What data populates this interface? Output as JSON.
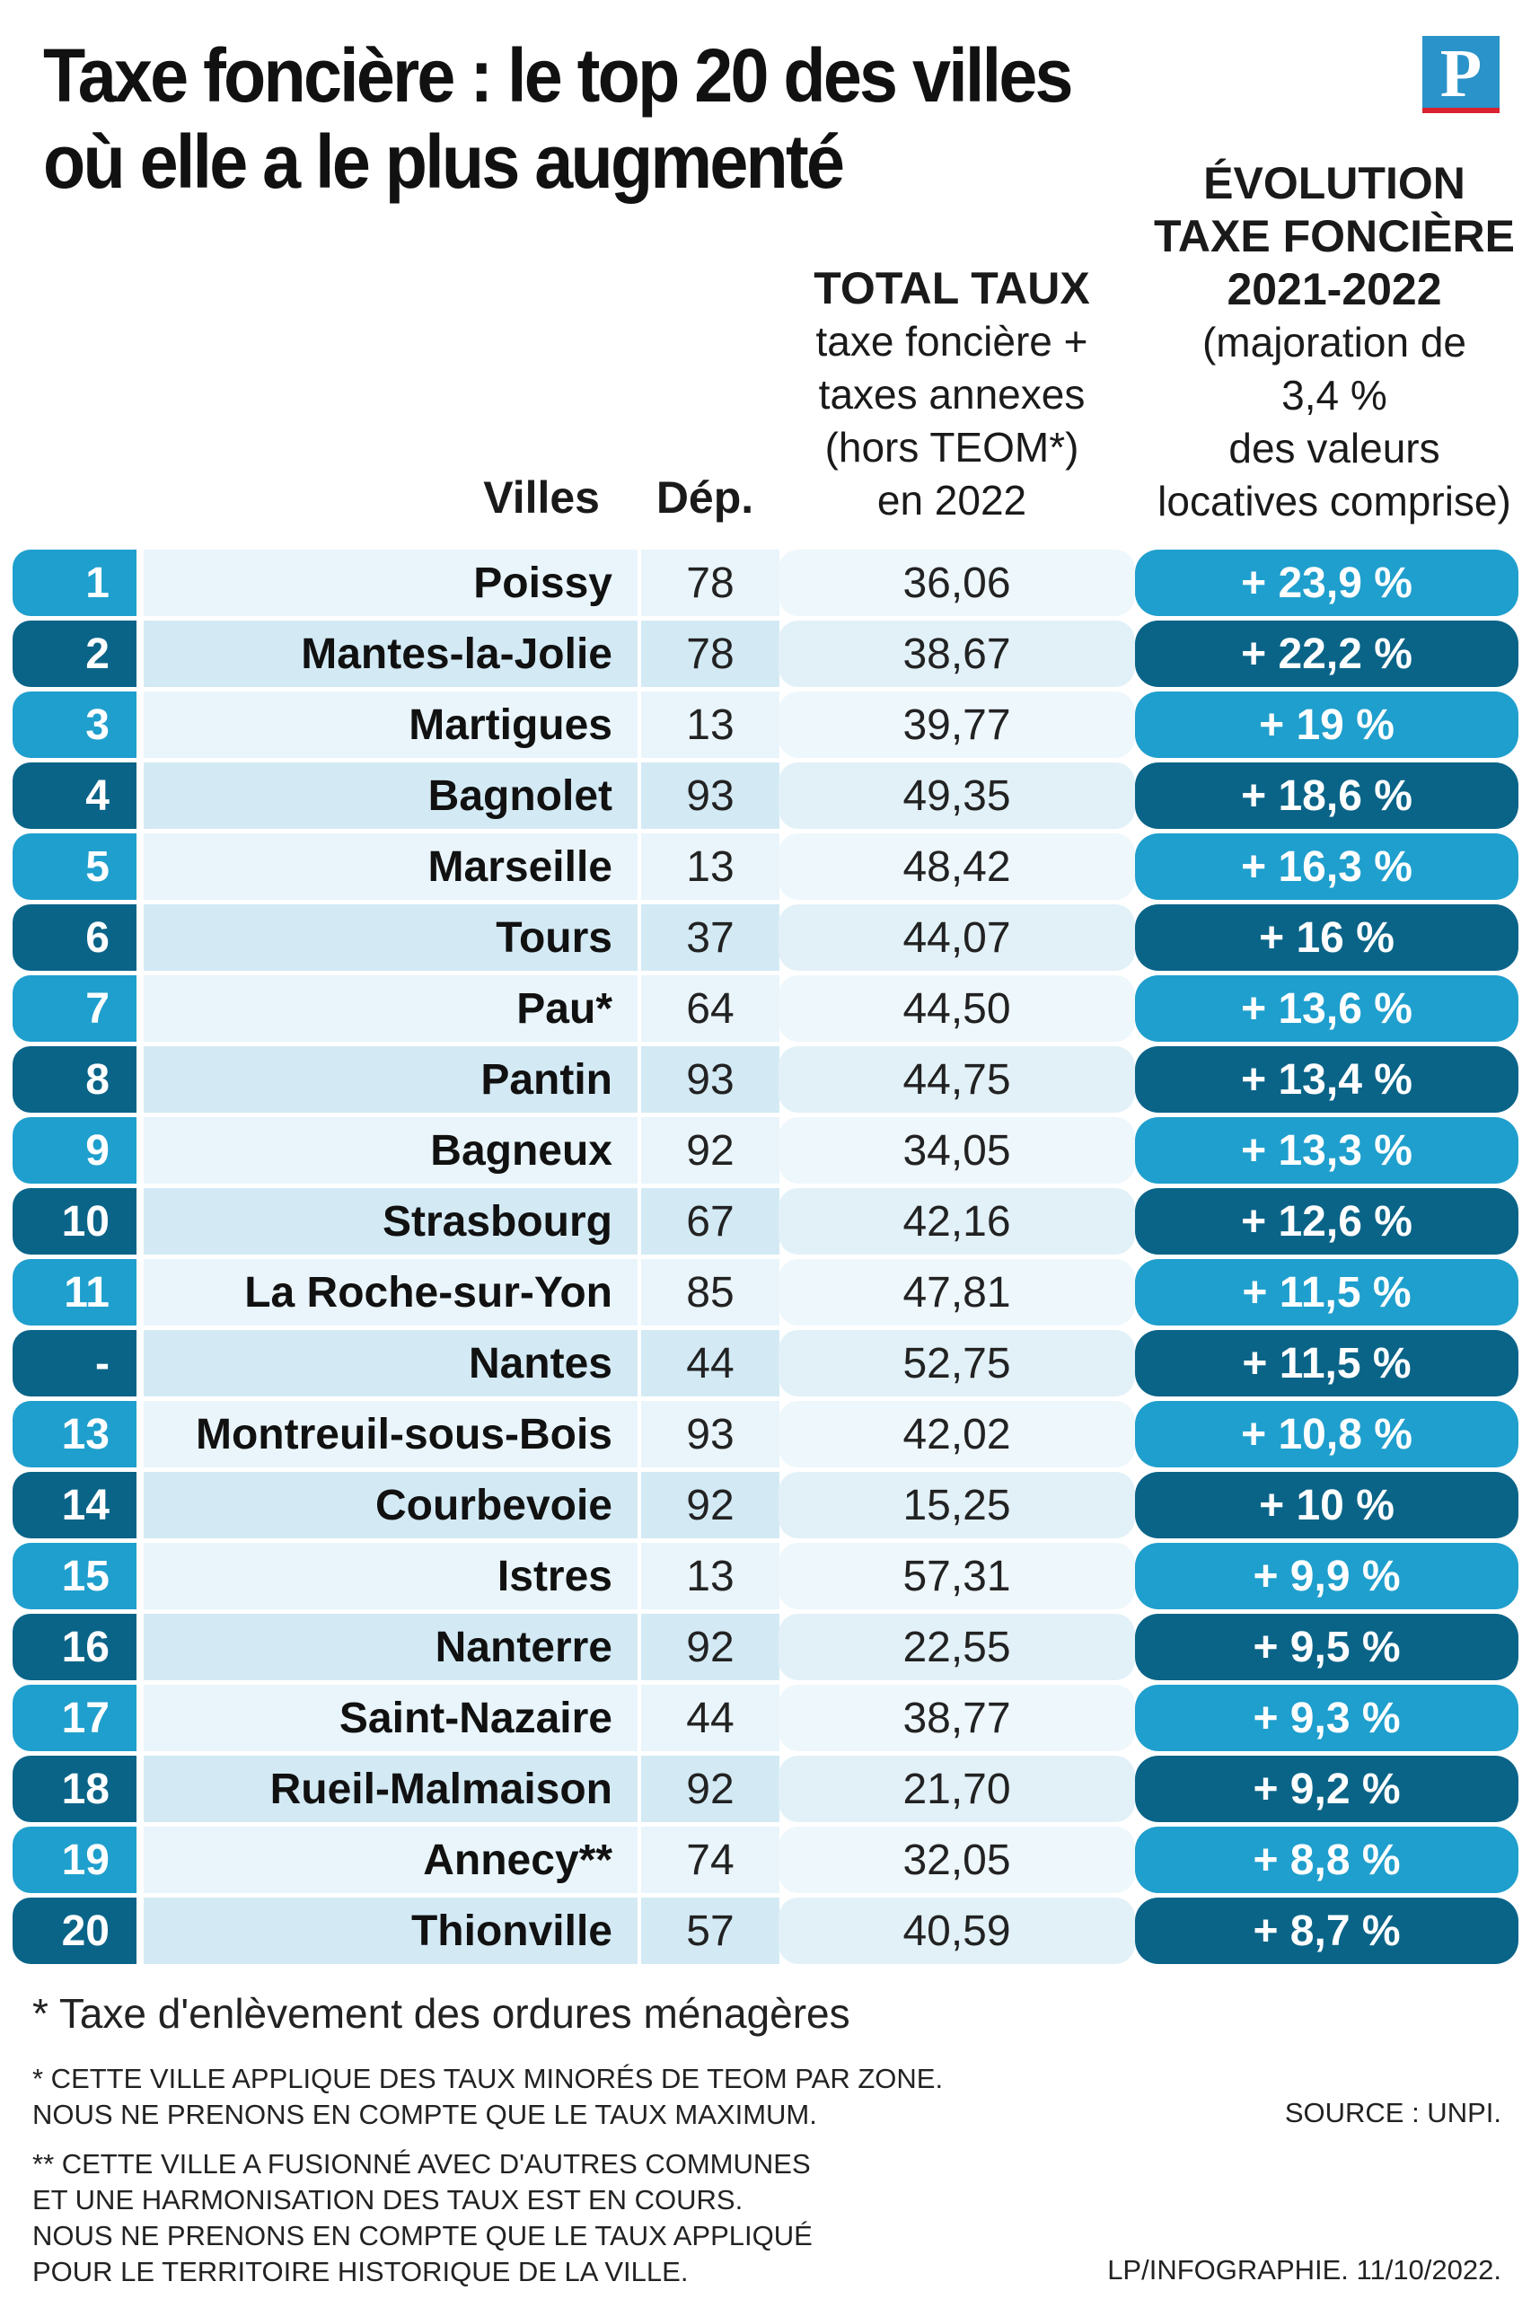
{
  "title": {
    "line1": "Taxe foncière : le top 20 des villes",
    "line2": "où elle a le plus augmenté"
  },
  "logo": {
    "letter": "P"
  },
  "headers": {
    "villes": "Villes",
    "dep": "Dép.",
    "total": {
      "title": "TOTAL TAUX",
      "lines": [
        "taxe foncière +",
        "taxes annexes",
        "(hors TEOM*)",
        "en 2022"
      ]
    },
    "evolution": {
      "title": [
        "ÉVOLUTION",
        "TAXE FONCIÈRE",
        "2021-2022"
      ],
      "lines": [
        "(majoration de",
        "3,4 %",
        "des valeurs",
        "locatives comprise)"
      ]
    }
  },
  "rows": [
    {
      "rank": "1",
      "city": "Poissy",
      "dep": "78",
      "total": "36,06",
      "evolution": "+ 23,9 %"
    },
    {
      "rank": "2",
      "city": "Mantes-la-Jolie",
      "dep": "78",
      "total": "38,67",
      "evolution": "+ 22,2 %"
    },
    {
      "rank": "3",
      "city": "Martigues",
      "dep": "13",
      "total": "39,77",
      "evolution": "+ 19 %"
    },
    {
      "rank": "4",
      "city": "Bagnolet",
      "dep": "93",
      "total": "49,35",
      "evolution": "+ 18,6 %"
    },
    {
      "rank": "5",
      "city": "Marseille",
      "dep": "13",
      "total": "48,42",
      "evolution": "+ 16,3 %"
    },
    {
      "rank": "6",
      "city": "Tours",
      "dep": "37",
      "total": "44,07",
      "evolution": "+ 16 %"
    },
    {
      "rank": "7",
      "city": "Pau*",
      "dep": "64",
      "total": "44,50",
      "evolution": "+ 13,6 %"
    },
    {
      "rank": "8",
      "city": "Pantin",
      "dep": "93",
      "total": "44,75",
      "evolution": "+ 13,4 %"
    },
    {
      "rank": "9",
      "city": "Bagneux",
      "dep": "92",
      "total": "34,05",
      "evolution": "+ 13,3 %"
    },
    {
      "rank": "10",
      "city": "Strasbourg",
      "dep": "67",
      "total": "42,16",
      "evolution": "+ 12,6 %"
    },
    {
      "rank": "11",
      "city": "La Roche-sur-Yon",
      "dep": "85",
      "total": "47,81",
      "evolution": "+ 11,5 %"
    },
    {
      "rank": "-",
      "city": "Nantes",
      "dep": "44",
      "total": "52,75",
      "evolution": "+ 11,5 %"
    },
    {
      "rank": "13",
      "city": "Montreuil-sous-Bois",
      "dep": "93",
      "total": "42,02",
      "evolution": "+ 10,8 %"
    },
    {
      "rank": "14",
      "city": "Courbevoie",
      "dep": "92",
      "total": "15,25",
      "evolution": "+ 10 %"
    },
    {
      "rank": "15",
      "city": "Istres",
      "dep": "13",
      "total": "57,31",
      "evolution": "+ 9,9 %"
    },
    {
      "rank": "16",
      "city": "Nanterre",
      "dep": "92",
      "total": "22,55",
      "evolution": "+ 9,5 %"
    },
    {
      "rank": "17",
      "city": "Saint-Nazaire",
      "dep": "44",
      "total": "38,77",
      "evolution": "+ 9,3 %"
    },
    {
      "rank": "18",
      "city": "Rueil-Malmaison",
      "dep": "92",
      "total": "21,70",
      "evolution": "+ 9,2 %"
    },
    {
      "rank": "19",
      "city": "Annecy**",
      "dep": "74",
      "total": "32,05",
      "evolution": "+ 8,8 %"
    },
    {
      "rank": "20",
      "city": "Thionville",
      "dep": "57",
      "total": "40,59",
      "evolution": "+ 8,7 %"
    }
  ],
  "footnotes": {
    "teom": "* Taxe d'enlèvement des ordures ménagères",
    "note1": [
      "* CETTE VILLE APPLIQUE DES TAUX MINORÉS DE TEOM PAR ZONE.",
      "NOUS NE PRENONS EN COMPTE QUE LE TAUX MAXIMUM."
    ],
    "note2": [
      "** CETTE VILLE A FUSIONNÉ AVEC D'AUTRES COMMUNES",
      "ET UNE HARMONISATION DES TAUX EST EN COURS.",
      "NOUS NE PRENONS EN COMPTE QUE LE TAUX APPLIQUÉ",
      "POUR LE TERRITOIRE HISTORIQUE DE LA VILLE."
    ],
    "source": "SOURCE : UNPI.",
    "credit": "LP/INFOGRAPHIE.  11/10/2022."
  },
  "colors": {
    "rank_light": "#1f9fcd",
    "rank_dark": "#0a6488",
    "logo_blue": "#2a93c9",
    "logo_red": "#d92330"
  }
}
